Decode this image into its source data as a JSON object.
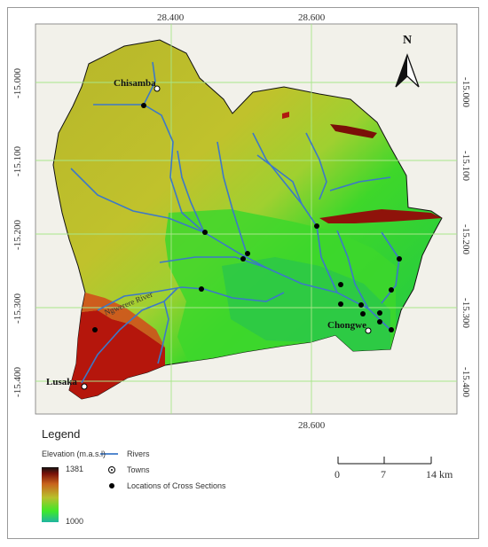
{
  "map": {
    "north_label": "N",
    "top_ticks": [
      "28.400",
      "28.600"
    ],
    "bottom_ticks": [
      "28.600"
    ],
    "left_ticks": [
      "-15.000",
      "-15.100",
      "-15.200",
      "-15.300",
      "-15.400"
    ],
    "right_ticks": [
      "-15.000",
      "-15.100",
      "-15.200",
      "-15.300",
      "-15.400"
    ],
    "places": {
      "chisamba": "Chisamba",
      "chongwe": "Chongwe",
      "lusaka": "Lusaka",
      "river": "Ngwerere River"
    }
  },
  "legend": {
    "title": "Legend",
    "elevation_label": "Elevation (m.a.s.l)",
    "elev_max": "1381",
    "elev_min": "1000",
    "rivers": "Rivers",
    "towns": "Towns",
    "cross_sections": "Locations of Cross Sections",
    "scale_0": "0",
    "scale_mid": "7",
    "scale_max": "14 km"
  },
  "colors": {
    "low": "#1fb58a",
    "mid": "#2ee030",
    "high": "#c7c02a",
    "peak": "#b0160c",
    "river": "#3c78c8",
    "grid": "#a8e68a"
  }
}
